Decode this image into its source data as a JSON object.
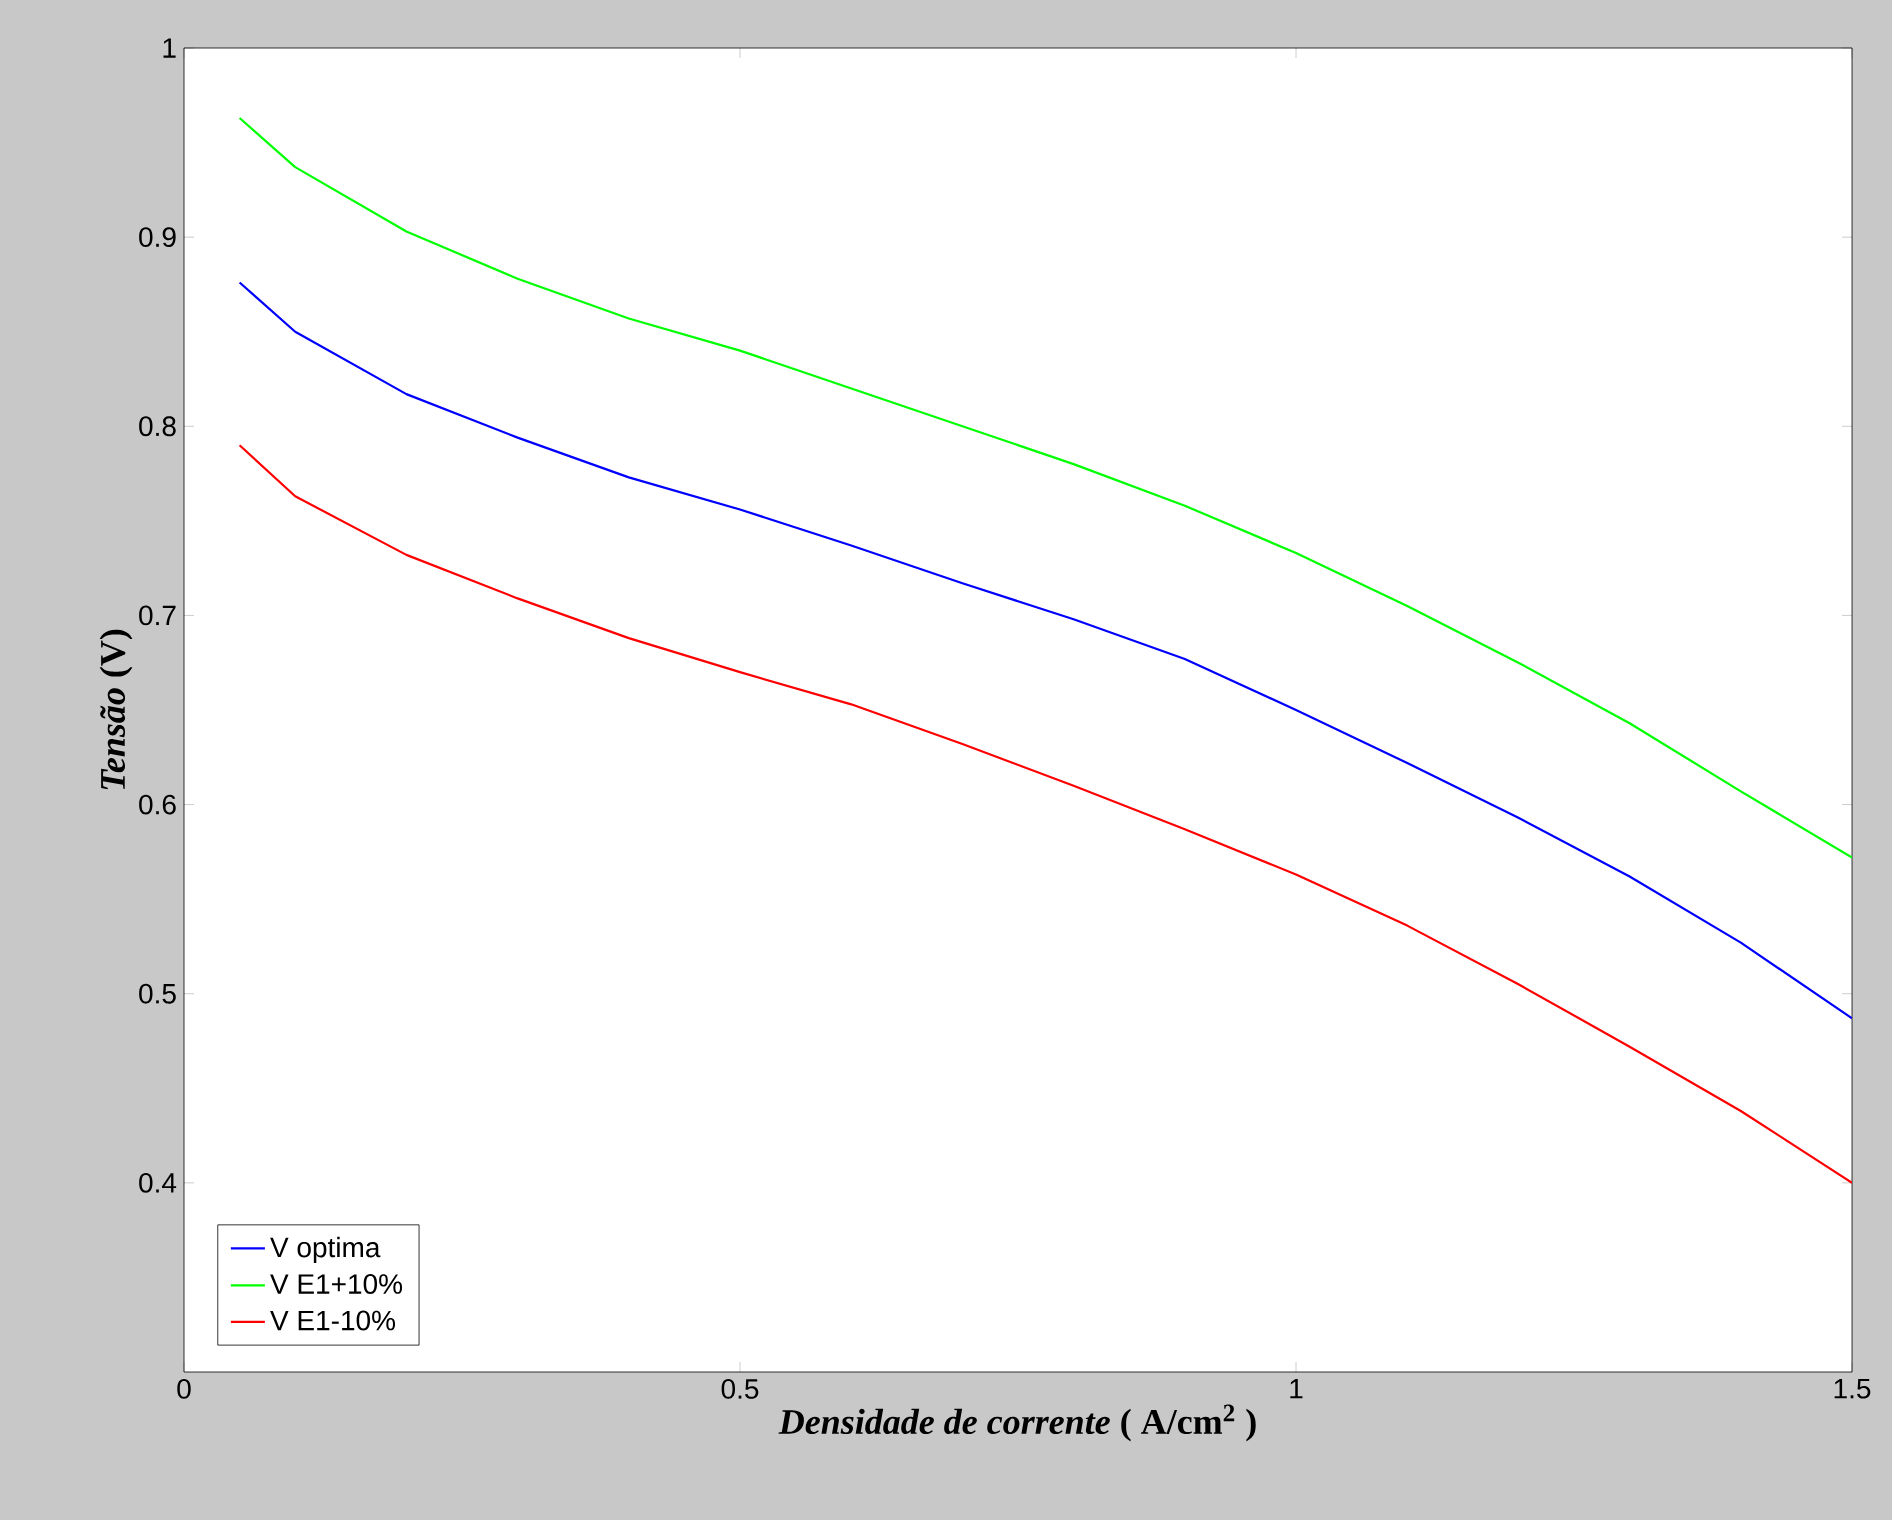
{
  "chart_data": {
    "type": "line",
    "xlabel": "*Densidade de corrente*  ( A/cm$^{2}$ )",
    "ylabel": "*Tensão* (V)",
    "x": [
      0.05,
      0.1,
      0.2,
      0.3,
      0.4,
      0.5,
      0.6,
      0.7,
      0.8,
      0.9,
      1.0,
      1.1,
      1.2,
      1.3,
      1.4,
      1.5
    ],
    "series": [
      {
        "name": "V optima",
        "color": "#0000ff",
        "values": [
          0.876,
          0.85,
          0.817,
          0.794,
          0.773,
          0.756,
          0.737,
          0.717,
          0.698,
          0.677,
          0.65,
          0.622,
          0.593,
          0.562,
          0.527,
          0.487
        ]
      },
      {
        "name": "V E1+10%",
        "color": "#00ff00",
        "values": [
          0.963,
          0.937,
          0.903,
          0.878,
          0.857,
          0.84,
          0.82,
          0.8,
          0.78,
          0.758,
          0.733,
          0.705,
          0.675,
          0.643,
          0.607,
          0.572
        ]
      },
      {
        "name": "V E1-10%",
        "color": "#ff0000",
        "values": [
          0.79,
          0.763,
          0.732,
          0.709,
          0.688,
          0.67,
          0.653,
          0.632,
          0.61,
          0.587,
          0.563,
          0.536,
          0.505,
          0.472,
          0.438,
          0.4
        ]
      }
    ],
    "xlim": [
      0,
      1.5
    ],
    "ylim": [
      0.3,
      1
    ],
    "xticks": [
      0,
      0.5,
      1,
      1.5
    ],
    "yticks": [
      0.4,
      0.5,
      0.6,
      0.7,
      0.8,
      0.9,
      1
    ],
    "grid": false,
    "legend": "bottom left",
    "marker": "none",
    "line_style": "solid"
  }
}
